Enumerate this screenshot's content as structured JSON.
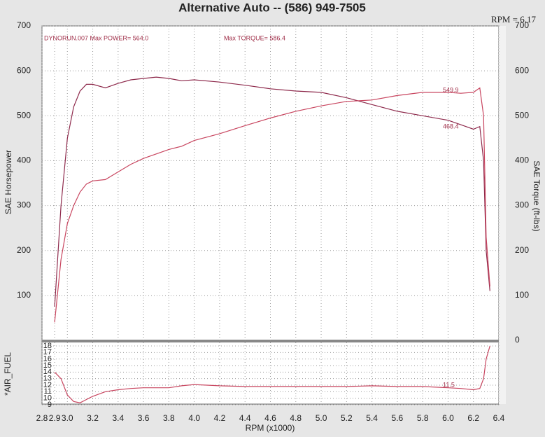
{
  "chart_data": {
    "type": "line",
    "title": "Alternative Auto -- (586) 949-7505",
    "corner_label": "RPM = 6.17",
    "x_label": "RPM (x1000)",
    "y_label": "SAE Horsepower",
    "y2_label": "SAE Torque (ft-lbs)",
    "annotations": [
      "DYNORUN.007  Max POWER= 564.0",
      "Max TORQUE= 586.4",
      "549.9",
      "468.4",
      "11.5"
    ],
    "x": [
      2.9,
      2.95,
      3.0,
      3.05,
      3.1,
      3.15,
      3.2,
      3.3,
      3.4,
      3.5,
      3.6,
      3.7,
      3.8,
      3.9,
      4.0,
      4.2,
      4.4,
      4.6,
      4.8,
      5.0,
      5.2,
      5.4,
      5.6,
      5.8,
      6.0,
      6.1,
      6.2,
      6.25,
      6.28,
      6.3,
      6.33
    ],
    "xlim": [
      2.8,
      6.4
    ],
    "xticks": [
      2.8,
      2.9,
      {
        "value": 3,
        "label": "3.0"
      },
      3.2,
      3.4,
      3.6,
      3.8,
      {
        "value": 4,
        "label": "4.0"
      },
      4.2,
      4.4,
      4.6,
      4.8,
      {
        "value": 5,
        "label": "5.0"
      },
      5.2,
      5.4,
      5.6,
      5.8,
      {
        "value": 6,
        "label": "6.0"
      },
      6.2,
      6.4
    ],
    "ylim": [
      0,
      700
    ],
    "yticks": [
      100,
      200,
      300,
      400,
      500,
      600,
      700
    ],
    "y2lim": [
      0,
      700
    ],
    "y2ticks": [
      0,
      100,
      200,
      300,
      400,
      500,
      600,
      700
    ],
    "grid": true,
    "series": [
      {
        "color": "#8e2a4c",
        "axis": "y2",
        "values": [
          75,
          300,
          450,
          520,
          555,
          570,
          570,
          562,
          572,
          580,
          583,
          586,
          583,
          578,
          580,
          575,
          568,
          560,
          555,
          552,
          540,
          525,
          510,
          500,
          490,
          480,
          470,
          476,
          400,
          200,
          110
        ]
      },
      {
        "color": "#c8455f",
        "values": [
          40,
          180,
          260,
          300,
          330,
          348,
          355,
          358,
          375,
          392,
          405,
          415,
          425,
          432,
          445,
          460,
          478,
          495,
          510,
          522,
          532,
          535,
          545,
          552,
          552,
          550,
          552,
          562,
          500,
          230,
          120
        ]
      }
    ],
    "air_fuel": {
      "label": "*AIR_FUEL",
      "color": "#c8455f",
      "ylim": [
        9,
        18
      ],
      "yticks": [
        9,
        10,
        11,
        12,
        13,
        14,
        15,
        16,
        17,
        18
      ],
      "values": [
        14,
        13,
        10.5,
        9.5,
        9.3,
        9.8,
        10.3,
        11,
        11.3,
        11.5,
        11.6,
        11.6,
        11.6,
        11.9,
        12.1,
        11.9,
        11.8,
        11.8,
        11.8,
        11.8,
        11.8,
        11.9,
        11.8,
        11.8,
        11.6,
        11.5,
        11.3,
        11.5,
        13,
        16,
        18
      ]
    }
  }
}
